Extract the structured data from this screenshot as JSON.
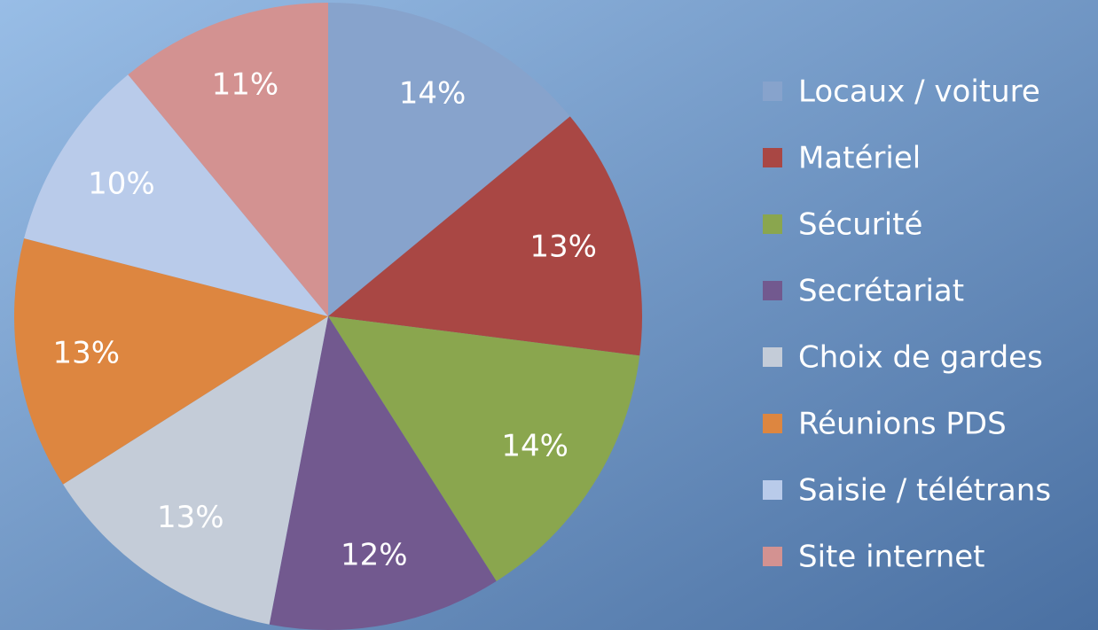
{
  "chart_data": {
    "type": "pie",
    "categories": [
      "Locaux / voiture",
      "Matériel",
      "Sécurité",
      "Secrétariat",
      "Choix de gardes",
      "Réunions PDS",
      "Saisie / télétrans",
      "Site internet"
    ],
    "values": [
      14,
      13,
      14,
      12,
      13,
      13,
      10,
      11
    ],
    "value_labels": [
      "14%",
      "13%",
      "14%",
      "12%",
      "13%",
      "13%",
      "10%",
      "11%"
    ],
    "colors": [
      "#87a3cc",
      "#a94744",
      "#8aa64e",
      "#72598f",
      "#c4ccd8",
      "#dd8640",
      "#b9cbea",
      "#d39291"
    ],
    "legend": "right"
  }
}
